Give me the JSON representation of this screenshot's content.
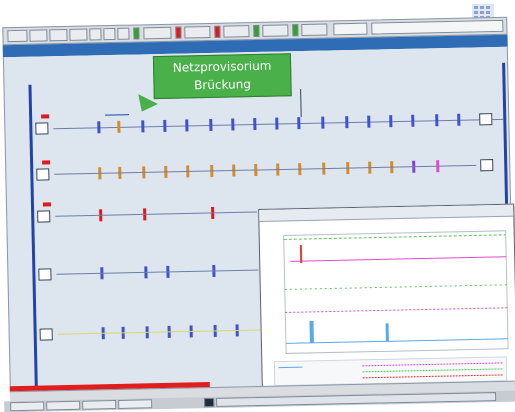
{
  "callout": {
    "line1": "Netzprovisorium",
    "line2": "Brückung"
  },
  "colors": {
    "accent_blue": "#2443a8",
    "callout_green": "#4ab04a",
    "bus_blue": "#3f53d0",
    "bus_orange": "#d58c2a",
    "bus_red": "#e01a1a",
    "bus_purple": "#8b3fd0",
    "popup_cyan": "#5aa9e6",
    "popup_green": "#59c759",
    "popup_magenta": "#e04bd0",
    "popup_red": "#e23b3b"
  },
  "icons": {
    "corner": "grid-icon",
    "toolbar_buttons": [
      "toolbar-button-icon",
      "toolbar-button-icon",
      "toolbar-button-icon",
      "toolbar-button-icon",
      "toolbar-button-icon",
      "toolbar-button-icon",
      "toolbar-button-icon"
    ]
  }
}
